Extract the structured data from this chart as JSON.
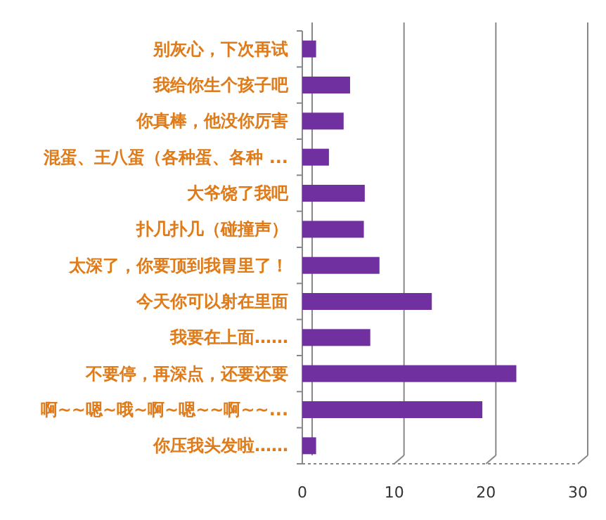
{
  "chart_data": {
    "type": "bar",
    "orientation": "horizontal",
    "categories": [
      "别灰心，下次再试",
      "我给你生个孩子吧",
      "你真棒，他没你厉害",
      "混蛋、王八蛋（各种蛋、各种 ...",
      "大爷饶了我吧",
      "扑几扑几（碰撞声）",
      "太深了，你要顶到我胃里了！",
      "今天你可以射在里面",
      "我要在上面……",
      "不要停，再深点，还要还要",
      "啊~~嗯~哦~啊~嗯~~啊~~...",
      "你压我头发啦……"
    ],
    "values": [
      1.5,
      5.2,
      4.5,
      2.9,
      6.8,
      6.7,
      8.4,
      14.1,
      7.4,
      23.3,
      19.6,
      1.5
    ],
    "color": "#7030a0",
    "xlim": [
      0,
      30
    ],
    "xticks": [
      0,
      10,
      20,
      30
    ],
    "grid": "x"
  }
}
